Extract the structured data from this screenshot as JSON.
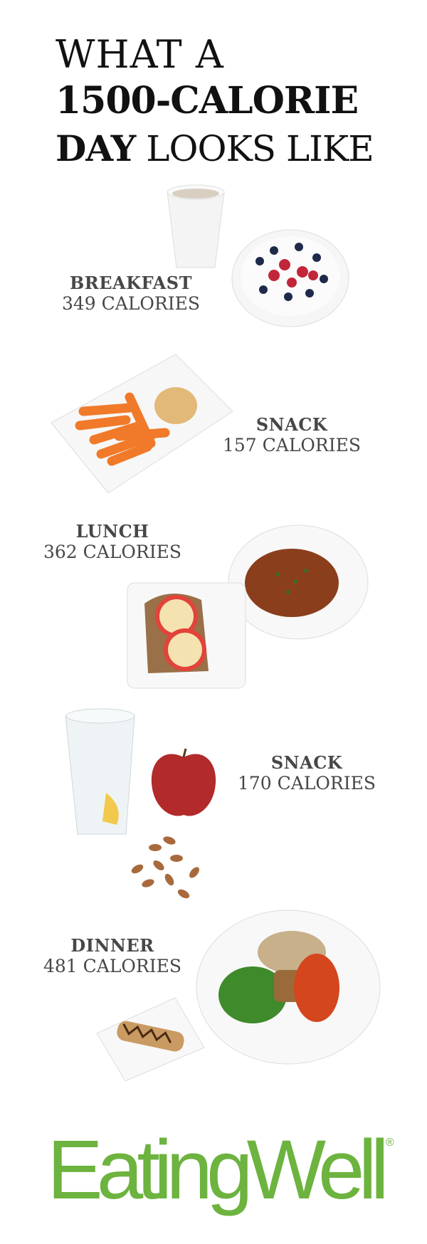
{
  "title": {
    "line1": "WHAT A",
    "line2": "1500-CALORIE",
    "line3_bold": "DAY",
    "line3_rest": " LOOKS LIKE"
  },
  "meals": [
    {
      "name": "BREAKFAST",
      "calories": "349 CALORIES"
    },
    {
      "name": "SNACK",
      "calories": "157 CALORIES"
    },
    {
      "name": "LUNCH",
      "calories": "362 CALORIES"
    },
    {
      "name": "SNACK",
      "calories": "170 CALORIES"
    },
    {
      "name": "DINNER",
      "calories": "481 CALORIES"
    }
  ],
  "brand": {
    "name": "EatingWell",
    "mark": "®",
    "color": "#6db33f"
  },
  "colors": {
    "title": "#111111",
    "label": "#474747"
  }
}
